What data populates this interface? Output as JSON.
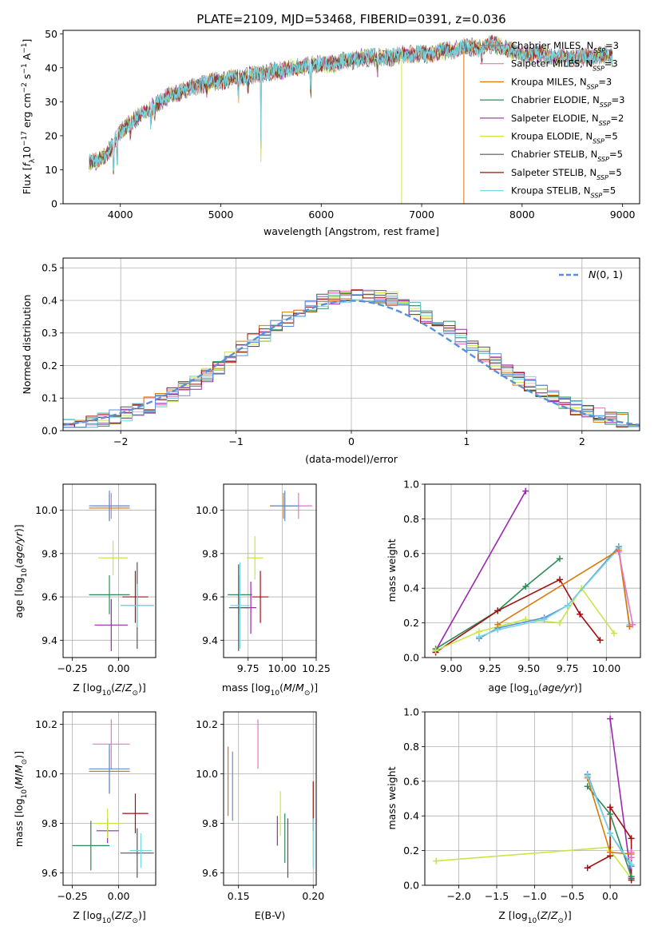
{
  "figure": {
    "title": "PLATE=2109, MJD=53468, FIBERID=0391, z=0.036"
  },
  "chart_data": [
    {
      "id": "spectrum",
      "type": "line",
      "xlabel": "wavelength [Angstrom, rest frame]",
      "ylabel": "Flux [f_λ10^-17 erg cm^-2 s^-1 A^-1]",
      "xlim": [
        3430,
        9170
      ],
      "ylim": [
        0,
        51
      ],
      "xticks": [
        "4000",
        "5000",
        "6000",
        "7000",
        "8000",
        "9000"
      ],
      "yticks": [
        "0",
        "10",
        "20",
        "30",
        "40",
        "50"
      ],
      "grid": false,
      "legend_position": "right",
      "continuum": {
        "x": [
          3690,
          3800,
          3900,
          4000,
          4100,
          4200,
          4300,
          4400,
          4500,
          4600,
          4700,
          4800,
          4900,
          5000,
          5100,
          5200,
          5300,
          5400,
          5500,
          5600,
          5700,
          5800,
          5900,
          6000,
          6100,
          6200,
          6300,
          6400,
          6500,
          6600,
          6700,
          6800,
          6900,
          7000,
          7100,
          7200,
          7300,
          7400,
          7500,
          7600,
          7700,
          7800,
          7900,
          8000,
          8100,
          8200,
          8300,
          8400,
          8500,
          8600,
          8700,
          8800,
          8900
        ],
        "y": [
          12,
          13,
          16,
          21,
          24,
          26,
          28,
          30,
          32,
          33,
          34,
          35,
          36,
          36,
          37,
          37,
          38,
          38,
          39,
          39,
          40,
          40,
          41,
          41,
          41,
          42,
          42,
          43,
          43,
          43,
          43,
          44,
          44,
          44,
          44,
          45,
          45,
          46,
          46,
          46,
          47,
          46,
          45,
          44,
          44,
          44,
          43,
          43,
          43,
          43,
          43,
          44,
          43
        ]
      },
      "series": [
        {
          "name": "Chabrier MILES, N_SSP=3",
          "color": "#808080"
        },
        {
          "name": "Salpeter MILES, N_SSP=3",
          "color": "#e377c2"
        },
        {
          "name": "Kroupa MILES, N_SSP=3",
          "color": "#d97a0a"
        },
        {
          "name": "Chabrier ELODIE, N_SSP=3",
          "color": "#2e8b57"
        },
        {
          "name": "Salpeter ELODIE, N_SSP=2",
          "color": "#9c27b0"
        },
        {
          "name": "Kroupa ELODIE, N_SSP=5",
          "color": "#c8e64a"
        },
        {
          "name": "Chabrier STELIB, N_SSP=5",
          "color": "#555555"
        },
        {
          "name": "Salpeter STELIB, N_SSP=5",
          "color": "#a01010"
        },
        {
          "name": "Kroupa STELIB, N_SSP=5",
          "color": "#76d7e0"
        }
      ]
    },
    {
      "id": "residuals",
      "type": "histogram",
      "xlabel": "(data-model)/error",
      "ylabel": "Normed distribution",
      "xlim": [
        -2.5,
        2.5
      ],
      "ylim": [
        0,
        0.53
      ],
      "xticks": [
        "-2",
        "-1",
        "0",
        "1",
        "2"
      ],
      "yticks": [
        "0.0",
        "0.1",
        "0.2",
        "0.3",
        "0.4",
        "0.5"
      ],
      "grid": true,
      "bin_width": 0.1,
      "bin_start": -2.5,
      "reference_curve": {
        "name": "N(0,1)",
        "color": "#5b8fd9",
        "style": "dashed",
        "mu": 0,
        "sigma": 1
      },
      "legend_position": "top-right"
    },
    {
      "id": "age-vs-Z",
      "type": "scatter",
      "xlabel": "Z [log10(Z/Z_sun)]",
      "ylabel": "age  [log10(age/yr)]",
      "xlim": [
        -0.3,
        0.2
      ],
      "ylim": [
        9.32,
        10.12
      ],
      "xticks": [
        "-0.25",
        "0.00"
      ],
      "yticks": [
        "9.4",
        "9.6",
        "9.8",
        "10.0"
      ],
      "grid": true,
      "points": [
        {
          "x": -0.04,
          "y": 10.02,
          "xerr": 0.1,
          "yerr": 0.06,
          "color": "#e377c2"
        },
        {
          "x": -0.05,
          "y": 10.01,
          "xerr": 0.11,
          "yerr": 0.06,
          "color": "#d97a0a"
        },
        {
          "x": -0.05,
          "y": 10.02,
          "xerr": 0.11,
          "yerr": 0.07,
          "color": "#5b8fd9"
        },
        {
          "x": -0.05,
          "y": 9.61,
          "xerr": 0.11,
          "yerr": 0.09,
          "color": "#2e8b57"
        },
        {
          "x": -0.04,
          "y": 9.47,
          "xerr": 0.09,
          "yerr": 0.12,
          "color": "#9c27b0"
        },
        {
          "x": -0.03,
          "y": 9.78,
          "xerr": 0.08,
          "yerr": 0.08,
          "color": "#c8e64a"
        },
        {
          "x": 0.1,
          "y": 9.56,
          "xerr": 0.09,
          "yerr": 0.2,
          "color": "#555555"
        },
        {
          "x": 0.09,
          "y": 9.6,
          "xerr": 0.07,
          "yerr": 0.12,
          "color": "#a01010"
        },
        {
          "x": 0.1,
          "y": 9.56,
          "xerr": 0.09,
          "yerr": 0.1,
          "color": "#76d7e0"
        }
      ]
    },
    {
      "id": "age-vs-mass",
      "type": "scatter",
      "xlabel": "mass [log10(M/M_sun)]",
      "ylabel": "",
      "xlim": [
        9.57,
        10.25
      ],
      "ylim": [
        9.32,
        10.12
      ],
      "xticks": [
        "9.75",
        "10.00",
        "10.25"
      ],
      "yticks": [
        "9.4",
        "9.6",
        "9.8",
        "10.0"
      ],
      "grid": true,
      "points": [
        {
          "x": 10.12,
          "y": 10.02,
          "xerr": 0.1,
          "yerr": 0.06,
          "color": "#e377c2"
        },
        {
          "x": 10.01,
          "y": 10.02,
          "xerr": 0.1,
          "yerr": 0.06,
          "color": "#d97a0a"
        },
        {
          "x": 10.02,
          "y": 10.02,
          "xerr": 0.1,
          "yerr": 0.07,
          "color": "#5b8fd9"
        },
        {
          "x": 9.69,
          "y": 9.61,
          "xerr": 0.09,
          "yerr": 0.09,
          "color": "#2e8b57"
        },
        {
          "x": 9.77,
          "y": 9.55,
          "xerr": 0.04,
          "yerr": 0.12,
          "color": "#9c27b0"
        },
        {
          "x": 9.8,
          "y": 9.78,
          "xerr": 0.06,
          "yerr": 0.1,
          "color": "#c8e64a"
        },
        {
          "x": 9.68,
          "y": 9.55,
          "xerr": 0.07,
          "yerr": 0.2,
          "color": "#555555"
        },
        {
          "x": 9.84,
          "y": 9.6,
          "xerr": 0.06,
          "yerr": 0.12,
          "color": "#a01010"
        },
        {
          "x": 9.69,
          "y": 9.56,
          "xerr": 0.07,
          "yerr": 0.2,
          "color": "#76d7e0"
        }
      ]
    },
    {
      "id": "weight-vs-age",
      "type": "line",
      "xlabel": "age  [log10(age/yr)]",
      "ylabel": "mass weight",
      "xlim": [
        8.83,
        10.22
      ],
      "ylim": [
        0.0,
        1.0
      ],
      "xticks": [
        "9.00",
        "9.25",
        "9.50",
        "9.75",
        "10.00"
      ],
      "yticks": [
        "0.0",
        "0.2",
        "0.4",
        "0.6",
        "0.8",
        "1.0"
      ],
      "grid": true,
      "series": [
        {
          "color": "#9c27b0",
          "x": [
            8.9,
            9.48
          ],
          "y": [
            0.04,
            0.96
          ]
        },
        {
          "color": "#2e8b57",
          "x": [
            8.9,
            9.3,
            9.48,
            9.7
          ],
          "y": [
            0.05,
            0.27,
            0.41,
            0.57
          ]
        },
        {
          "color": "#a01010",
          "x": [
            8.9,
            9.3,
            9.7,
            9.83,
            9.96
          ],
          "y": [
            0.03,
            0.27,
            0.45,
            0.25,
            0.1
          ]
        },
        {
          "color": "#c8e64a",
          "x": [
            8.9,
            9.18,
            9.48,
            9.7,
            9.84,
            10.05
          ],
          "y": [
            0.04,
            0.15,
            0.22,
            0.2,
            0.4,
            0.14
          ]
        },
        {
          "color": "#5b8fd9",
          "x": [
            9.18,
            9.3,
            9.6,
            9.75,
            10.08,
            10.15
          ],
          "y": [
            0.11,
            0.17,
            0.23,
            0.3,
            0.64,
            0.18
          ]
        },
        {
          "color": "#76d7e0",
          "x": [
            9.18,
            9.3,
            9.6,
            9.75,
            10.08,
            10.15
          ],
          "y": [
            0.12,
            0.16,
            0.22,
            0.3,
            0.63,
            0.19
          ]
        },
        {
          "color": "#d97a0a",
          "x": [
            9.3,
            10.08,
            10.15
          ],
          "y": [
            0.19,
            0.62,
            0.18
          ]
        },
        {
          "color": "#e377c2",
          "x": [
            10.08,
            10.17
          ],
          "y": [
            0.61,
            0.19
          ]
        }
      ]
    },
    {
      "id": "mass-vs-Z",
      "type": "scatter",
      "xlabel": "Z [log10(Z/Z_sun)]",
      "ylabel": "mass [log10(M/M_sun)]",
      "xlim": [
        -0.3,
        0.2
      ],
      "ylim": [
        9.55,
        10.25
      ],
      "xticks": [
        "-0.25",
        "0.00"
      ],
      "yticks": [
        "9.6",
        "9.8",
        "10.0",
        "10.2"
      ],
      "grid": true,
      "points": [
        {
          "x": -0.04,
          "y": 10.12,
          "xerr": 0.1,
          "yerr": 0.1,
          "color": "#e377c2"
        },
        {
          "x": -0.05,
          "y": 10.01,
          "xerr": 0.11,
          "yerr": 0.09,
          "color": "#d97a0a"
        },
        {
          "x": -0.05,
          "y": 10.02,
          "xerr": 0.11,
          "yerr": 0.1,
          "color": "#5b8fd9"
        },
        {
          "x": -0.15,
          "y": 9.71,
          "xerr": 0.1,
          "yerr": 0.1,
          "color": "#2e8b57"
        },
        {
          "x": -0.06,
          "y": 9.77,
          "xerr": 0.06,
          "yerr": 0.05,
          "color": "#9c27b0"
        },
        {
          "x": -0.06,
          "y": 9.8,
          "xerr": 0.07,
          "yerr": 0.06,
          "color": "#c8e64a"
        },
        {
          "x": 0.1,
          "y": 9.68,
          "xerr": 0.09,
          "yerr": 0.1,
          "color": "#555555"
        },
        {
          "x": 0.09,
          "y": 9.84,
          "xerr": 0.07,
          "yerr": 0.08,
          "color": "#a01010"
        },
        {
          "x": 0.12,
          "y": 9.69,
          "xerr": 0.06,
          "yerr": 0.07,
          "color": "#76d7e0"
        }
      ]
    },
    {
      "id": "mass-vs-ebv",
      "type": "scatter",
      "xlabel": "E(B-V)",
      "ylabel": "",
      "xlim": [
        0.14,
        0.202
      ],
      "ylim": [
        9.55,
        10.25
      ],
      "xticks": [
        "0.15",
        "0.20"
      ],
      "yticks": [
        "9.6",
        "9.8",
        "10.0",
        "10.2"
      ],
      "grid": true,
      "points": [
        {
          "x": 0.163,
          "y": 10.12,
          "yerr": 0.1,
          "color": "#e377c2"
        },
        {
          "x": 0.143,
          "y": 9.97,
          "yerr": 0.14,
          "color": "#d97a0a"
        },
        {
          "x": 0.146,
          "y": 9.95,
          "yerr": 0.14,
          "color": "#5b8fd9"
        },
        {
          "x": 0.181,
          "y": 9.74,
          "yerr": 0.1,
          "color": "#2e8b57"
        },
        {
          "x": 0.176,
          "y": 9.77,
          "yerr": 0.06,
          "color": "#9c27b0"
        },
        {
          "x": 0.178,
          "y": 9.84,
          "yerr": 0.09,
          "color": "#c8e64a"
        },
        {
          "x": 0.183,
          "y": 9.7,
          "yerr": 0.12,
          "color": "#555555"
        },
        {
          "x": 0.2,
          "y": 9.87,
          "yerr": 0.1,
          "color": "#a01010"
        },
        {
          "x": 0.2,
          "y": 9.72,
          "yerr": 0.1,
          "color": "#76d7e0"
        }
      ]
    },
    {
      "id": "weight-vs-Z",
      "type": "line",
      "xlabel": "Z [log10(Z/Z_sun)]",
      "ylabel": "mass weight",
      "xlim": [
        -2.45,
        0.4
      ],
      "ylim": [
        0.0,
        1.0
      ],
      "xticks": [
        "-2.0",
        "-1.5",
        "-1.0",
        "-0.5",
        "0.0"
      ],
      "yticks": [
        "0.0",
        "0.2",
        "0.4",
        "0.6",
        "0.8",
        "1.0"
      ],
      "grid": true,
      "series": [
        {
          "color": "#c8e64a",
          "x": [
            -2.3,
            0.0,
            0.0,
            0.28
          ],
          "y": [
            0.14,
            0.22,
            0.2,
            0.04
          ]
        },
        {
          "color": "#9c27b0",
          "x": [
            0.0,
            0.28
          ],
          "y": [
            0.96,
            0.04
          ]
        },
        {
          "color": "#a01010",
          "x": [
            -0.3,
            0.0,
            0.0,
            0.28,
            0.28
          ],
          "y": [
            0.1,
            0.17,
            0.45,
            0.27,
            0.03
          ]
        },
        {
          "color": "#2e8b57",
          "x": [
            -0.3,
            0.0,
            0.28
          ],
          "y": [
            0.57,
            0.41,
            0.05
          ]
        },
        {
          "color": "#d97a0a",
          "x": [
            -0.3,
            0.0,
            0.28
          ],
          "y": [
            0.62,
            0.19,
            0.18
          ]
        },
        {
          "color": "#5b8fd9",
          "x": [
            -0.3,
            0.0,
            0.28
          ],
          "y": [
            0.64,
            0.3,
            0.11
          ]
        },
        {
          "color": "#76d7e0",
          "x": [
            -0.3,
            0.0,
            0.28
          ],
          "y": [
            0.63,
            0.3,
            0.12
          ]
        },
        {
          "color": "#e377c2",
          "x": [
            0.28,
            0.28
          ],
          "y": [
            0.19,
            0.16
          ]
        }
      ]
    }
  ]
}
